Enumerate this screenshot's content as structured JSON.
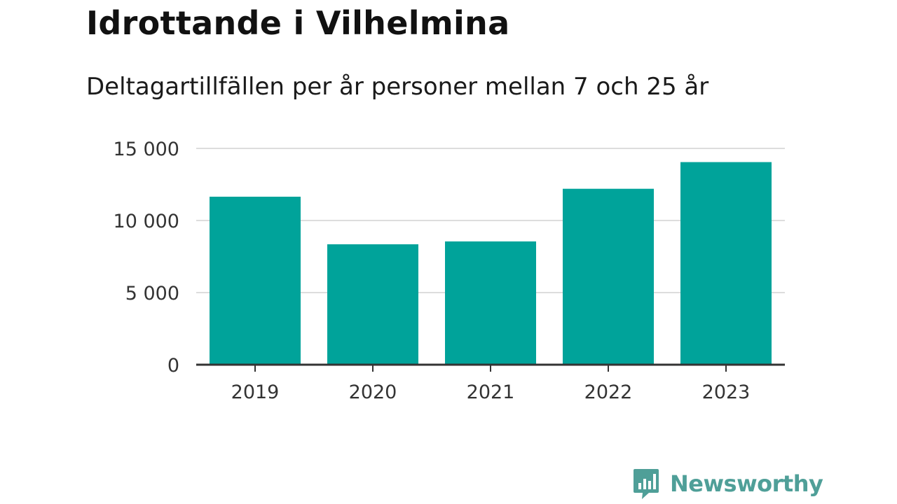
{
  "header": {
    "title": "Idrottande i Vilhelmina",
    "subtitle": "Deltagartillfällen per år personer mellan 7 och 25 år"
  },
  "chart_data": {
    "type": "bar",
    "categories": [
      "2019",
      "2020",
      "2021",
      "2022",
      "2023"
    ],
    "values": [
      11650,
      8350,
      8550,
      12200,
      14050
    ],
    "ylim": [
      0,
      15000
    ],
    "yticks": [
      0,
      5000,
      10000,
      15000
    ],
    "ytick_labels": [
      "0",
      "5 000",
      "10 000",
      "15 000"
    ],
    "grid": true,
    "bar_color": "#00a39a"
  },
  "branding": {
    "logo_text": "Newsworthy",
    "logo_icon": "newsworthy-bar-chart-icon",
    "logo_color": "#4f9f98"
  }
}
